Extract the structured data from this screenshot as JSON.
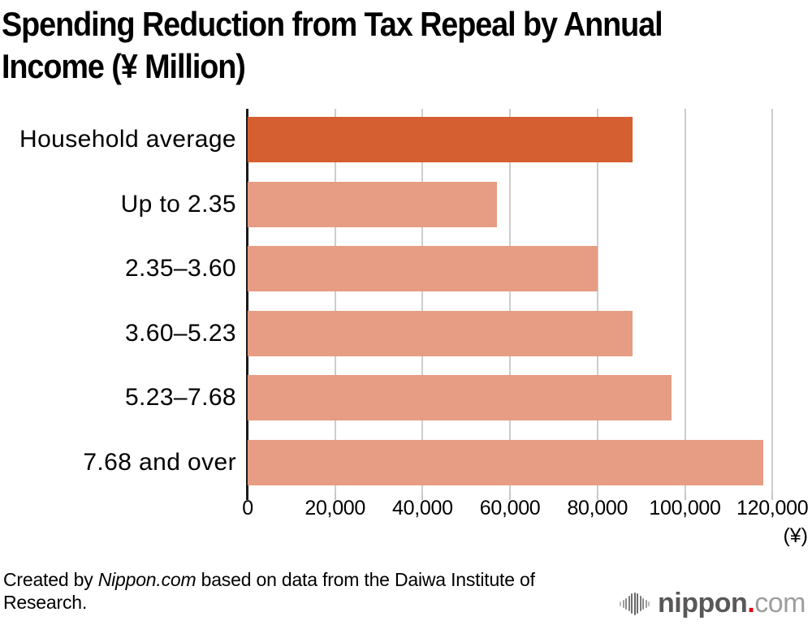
{
  "title": {
    "line1": "Spending Reduction from Tax Repeal by Annual",
    "line2": "Income (¥ Million)"
  },
  "chart_data": {
    "type": "bar",
    "orientation": "horizontal",
    "title": "Spending Reduction from Tax Repeal by Annual Income (¥ Million)",
    "categories": [
      "Household average",
      "Up to 2.35",
      "2.35–3.60",
      "3.60–5.23",
      "5.23–7.68",
      "7.68 and over"
    ],
    "values": [
      88000,
      57000,
      80000,
      88000,
      97000,
      118000
    ],
    "xlim": [
      0,
      120000
    ],
    "x_ticks": [
      0,
      20000,
      40000,
      60000,
      80000,
      100000,
      120000
    ],
    "x_tick_labels": [
      "0",
      "20,000",
      "40,000",
      "60,000",
      "80,000",
      "100,000",
      "120,000"
    ],
    "unit_label": "(¥)",
    "grid": true,
    "legend": "none",
    "highlight_index": 0,
    "colors": {
      "highlight_bar": "#d55f30",
      "default_bar": "#e69d83",
      "gridline": "#cdcdcd",
      "axis": "#1a1a1a",
      "text": "#000000"
    }
  },
  "footer": {
    "prefix": "Created by ",
    "source_italic": "Nippon.com",
    "suffix": " based on data from the Daiwa Institute of Research."
  },
  "logo": {
    "brand": "nippon",
    "dot": ".",
    "tld": "com",
    "mark_bar_heights": [
      6,
      10,
      14,
      19,
      25,
      28,
      25,
      19,
      14,
      10,
      6
    ],
    "mark_bar_colors": [
      "#bcbcbc",
      "#9d9d9d",
      "#8a8a8a",
      "#7a7a7a",
      "#6e6e6e",
      "#666666",
      "#6e6e6e",
      "#7a7a7a",
      "#8a8a8a",
      "#9d9d9d",
      "#bcbcbc"
    ]
  }
}
